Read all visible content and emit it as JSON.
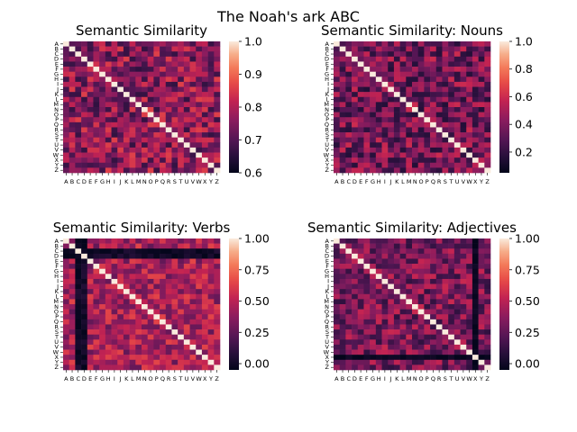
{
  "figure": {
    "suptitle": "The Noah's ark ABC"
  },
  "chart_data": [
    {
      "type": "heatmap",
      "title": "Semantic Similarity",
      "xlabels": [
        "A",
        "B",
        "C",
        "D",
        "E",
        "F",
        "G",
        "H",
        "I",
        "J",
        "K",
        "L",
        "M",
        "N",
        "O",
        "P",
        "Q",
        "R",
        "S",
        "T",
        "U",
        "V",
        "W",
        "X",
        "Y",
        "Z"
      ],
      "ylabels": [
        "A",
        "B",
        "C",
        "D",
        "E",
        "F",
        "G",
        "H",
        "I",
        "J",
        "K",
        "L",
        "M",
        "N",
        "O",
        "P",
        "Q",
        "R",
        "S",
        "T",
        "U",
        "V",
        "W",
        "X",
        "Y",
        "Z"
      ],
      "colorbar": {
        "ticks": [
          "0.6",
          "0.7",
          "0.8",
          "0.9",
          "1.0"
        ],
        "min": 0.6,
        "max": 1.0
      },
      "value_range": [
        0.62,
        1.0
      ],
      "diagonal": 1.0,
      "seed": 11,
      "typical_range": [
        0.66,
        0.86
      ],
      "dark_rows": [],
      "bright_rows": [],
      "colormap": "rocket"
    },
    {
      "type": "heatmap",
      "title": "Semantic Similarity: Nouns",
      "xlabels": [
        "A",
        "B",
        "C",
        "D",
        "E",
        "F",
        "G",
        "H",
        "I",
        "J",
        "K",
        "L",
        "M",
        "N",
        "O",
        "P",
        "Q",
        "R",
        "S",
        "T",
        "U",
        "V",
        "W",
        "X",
        "Y",
        "Z"
      ],
      "ylabels": [
        "A",
        "B",
        "C",
        "D",
        "E",
        "F",
        "G",
        "H",
        "I",
        "J",
        "K",
        "L",
        "M",
        "N",
        "O",
        "P",
        "Q",
        "R",
        "S",
        "T",
        "U",
        "V",
        "W",
        "X",
        "Y",
        "Z"
      ],
      "colorbar": {
        "ticks": [
          "0.2",
          "0.4",
          "0.6",
          "0.8",
          "1.0"
        ],
        "min": 0.05,
        "max": 1.0
      },
      "value_range": [
        0.05,
        1.0
      ],
      "diagonal": 1.0,
      "seed": 23,
      "typical_range": [
        0.15,
        0.6
      ],
      "dark_rows": [],
      "bright_rows": [],
      "colormap": "rocket"
    },
    {
      "type": "heatmap",
      "title": "Semantic Similarity: Verbs",
      "xlabels": [
        "A",
        "B",
        "C",
        "D",
        "E",
        "F",
        "G",
        "H",
        "I",
        "J",
        "K",
        "L",
        "M",
        "N",
        "O",
        "P",
        "Q",
        "R",
        "S",
        "T",
        "U",
        "V",
        "W",
        "X",
        "Y",
        "Z"
      ],
      "ylabels": [
        "A",
        "B",
        "C",
        "D",
        "E",
        "F",
        "G",
        "H",
        "I",
        "J",
        "K",
        "L",
        "M",
        "N",
        "O",
        "P",
        "Q",
        "R",
        "S",
        "T",
        "U",
        "V",
        "W",
        "X",
        "Y",
        "Z"
      ],
      "colorbar": {
        "ticks": [
          "0.00",
          "0.25",
          "0.50",
          "0.75",
          "1.00"
        ],
        "min": -0.05,
        "max": 1.0
      },
      "value_range": [
        -0.05,
        1.0
      ],
      "diagonal": 1.0,
      "seed": 37,
      "typical_range": [
        0.25,
        0.65
      ],
      "dark_rows": [
        2,
        3
      ],
      "bright_rows": [],
      "colormap": "rocket"
    },
    {
      "type": "heatmap",
      "title": "Semantic Similarity: Adjectives",
      "xlabels": [
        "A",
        "B",
        "C",
        "D",
        "E",
        "F",
        "G",
        "H",
        "I",
        "J",
        "K",
        "L",
        "M",
        "N",
        "O",
        "P",
        "Q",
        "R",
        "S",
        "T",
        "U",
        "V",
        "W",
        "X",
        "Y",
        "Z"
      ],
      "ylabels": [
        "A",
        "B",
        "C",
        "D",
        "E",
        "F",
        "G",
        "H",
        "I",
        "J",
        "K",
        "L",
        "M",
        "N",
        "O",
        "P",
        "Q",
        "R",
        "S",
        "T",
        "U",
        "V",
        "W",
        "X",
        "Y",
        "Z"
      ],
      "colorbar": {
        "ticks": [
          "0.00",
          "0.25",
          "0.50",
          "0.75",
          "1.00"
        ],
        "min": -0.05,
        "max": 1.0
      },
      "value_range": [
        -0.05,
        1.0
      ],
      "diagonal": 1.0,
      "seed": 53,
      "typical_range": [
        0.1,
        0.55
      ],
      "dark_rows": [
        23
      ],
      "bright_rows": [],
      "colormap": "rocket"
    }
  ]
}
